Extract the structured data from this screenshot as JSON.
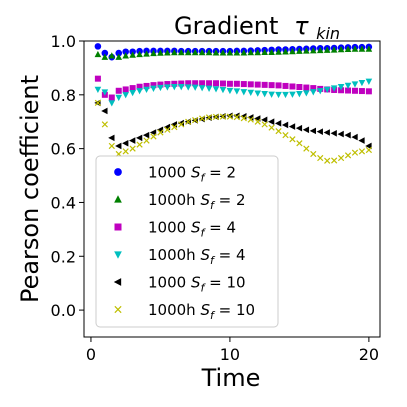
{
  "chart_data": {
    "type": "scatter",
    "title": "Gradient",
    "title_symbol": "τ",
    "title_subscript": "kin",
    "xlabel": "Time",
    "ylabel": "Pearson coefficient",
    "xlim": [
      -0.5,
      20.8
    ],
    "ylim": [
      -0.1,
      1.0
    ],
    "xticks": [
      0,
      10,
      20
    ],
    "yticks": [
      0.0,
      0.2,
      0.4,
      0.6,
      0.8,
      1.0
    ],
    "xtick_labels": [
      "0",
      "10",
      "20"
    ],
    "ytick_labels": [
      "0.0",
      "0.2",
      "0.4",
      "0.6",
      "0.8",
      "1.0"
    ],
    "legend_position": "lower-left",
    "series": [
      {
        "name": "1000",
        "sf": "2",
        "marker": "circle",
        "color": "#0000ff",
        "x": [
          0.5,
          1.0,
          1.5,
          2.0,
          2.5,
          3.0,
          3.5,
          4.0,
          4.5,
          5.0,
          5.5,
          6.0,
          6.5,
          7.0,
          7.5,
          8.0,
          8.5,
          9.0,
          9.5,
          10.0,
          10.5,
          11.0,
          11.5,
          12.0,
          12.5,
          13.0,
          13.5,
          14.0,
          14.5,
          15.0,
          15.5,
          16.0,
          16.5,
          17.0,
          17.5,
          18.0,
          18.5,
          19.0,
          19.5,
          20.0
        ],
        "y": [
          0.98,
          0.955,
          0.94,
          0.955,
          0.96,
          0.96,
          0.962,
          0.963,
          0.963,
          0.963,
          0.963,
          0.963,
          0.962,
          0.962,
          0.962,
          0.962,
          0.962,
          0.962,
          0.962,
          0.962,
          0.963,
          0.963,
          0.964,
          0.965,
          0.966,
          0.967,
          0.968,
          0.968,
          0.969,
          0.97,
          0.971,
          0.972,
          0.973,
          0.973,
          0.974,
          0.975,
          0.976,
          0.977,
          0.977,
          0.978
        ]
      },
      {
        "name": "1000h",
        "sf": "2",
        "marker": "triangle-up",
        "color": "#008000",
        "x": [
          0.5,
          1.0,
          1.5,
          2.0,
          2.5,
          3.0,
          3.5,
          4.0,
          4.5,
          5.0,
          5.5,
          6.0,
          6.5,
          7.0,
          7.5,
          8.0,
          8.5,
          9.0,
          9.5,
          10.0,
          10.5,
          11.0,
          11.5,
          12.0,
          12.5,
          13.0,
          13.5,
          14.0,
          14.5,
          15.0,
          15.5,
          16.0,
          16.5,
          17.0,
          17.5,
          18.0,
          18.5,
          19.0,
          19.5,
          20.0
        ],
        "y": [
          0.95,
          0.94,
          0.945,
          0.94,
          0.945,
          0.948,
          0.95,
          0.952,
          0.954,
          0.955,
          0.956,
          0.957,
          0.957,
          0.957,
          0.957,
          0.957,
          0.957,
          0.956,
          0.956,
          0.956,
          0.956,
          0.956,
          0.957,
          0.957,
          0.958,
          0.958,
          0.959,
          0.96,
          0.961,
          0.962,
          0.963,
          0.964,
          0.965,
          0.966,
          0.967,
          0.968,
          0.969,
          0.97,
          0.97,
          0.97
        ]
      },
      {
        "name": "1000",
        "sf": "4",
        "marker": "square",
        "color": "#bf00bf",
        "x": [
          0.5,
          1.0,
          1.5,
          2.0,
          2.5,
          3.0,
          3.5,
          4.0,
          4.5,
          5.0,
          5.5,
          6.0,
          6.5,
          7.0,
          7.5,
          8.0,
          8.5,
          9.0,
          9.5,
          10.0,
          10.5,
          11.0,
          11.5,
          12.0,
          12.5,
          13.0,
          13.5,
          14.0,
          14.5,
          15.0,
          15.5,
          16.0,
          16.5,
          17.0,
          17.5,
          18.0,
          18.5,
          19.0,
          19.5,
          20.0
        ],
        "y": [
          0.86,
          0.8,
          0.79,
          0.815,
          0.82,
          0.825,
          0.83,
          0.833,
          0.836,
          0.838,
          0.84,
          0.841,
          0.842,
          0.843,
          0.843,
          0.843,
          0.843,
          0.843,
          0.842,
          0.841,
          0.841,
          0.84,
          0.839,
          0.838,
          0.837,
          0.836,
          0.835,
          0.833,
          0.831,
          0.829,
          0.827,
          0.825,
          0.822,
          0.82,
          0.818,
          0.817,
          0.816,
          0.815,
          0.814,
          0.813
        ]
      },
      {
        "name": "1000h",
        "sf": "4",
        "marker": "triangle-down",
        "color": "#00bfbf",
        "x": [
          0.5,
          1.0,
          1.5,
          2.0,
          2.5,
          3.0,
          3.5,
          4.0,
          4.5,
          5.0,
          5.5,
          6.0,
          6.5,
          7.0,
          7.5,
          8.0,
          8.5,
          9.0,
          9.5,
          10.0,
          10.5,
          11.0,
          11.5,
          12.0,
          12.5,
          13.0,
          13.5,
          14.0,
          14.5,
          15.0,
          15.5,
          16.0,
          16.5,
          17.0,
          17.5,
          18.0,
          18.5,
          19.0,
          19.5,
          20.0
        ],
        "y": [
          0.82,
          0.81,
          0.77,
          0.79,
          0.8,
          0.808,
          0.815,
          0.82,
          0.824,
          0.827,
          0.829,
          0.83,
          0.83,
          0.829,
          0.828,
          0.826,
          0.824,
          0.822,
          0.819,
          0.816,
          0.814,
          0.811,
          0.809,
          0.806,
          0.804,
          0.802,
          0.801,
          0.801,
          0.802,
          0.804,
          0.807,
          0.811,
          0.815,
          0.82,
          0.825,
          0.83,
          0.835,
          0.84,
          0.845,
          0.85
        ]
      },
      {
        "name": "1000",
        "sf": "10",
        "marker": "triangle-left",
        "color": "#000000",
        "x": [
          0.5,
          1.0,
          1.5,
          2.0,
          2.5,
          3.0,
          3.5,
          4.0,
          4.5,
          5.0,
          5.5,
          6.0,
          6.5,
          7.0,
          7.5,
          8.0,
          8.5,
          9.0,
          9.5,
          10.0,
          10.5,
          11.0,
          11.5,
          12.0,
          12.5,
          13.0,
          13.5,
          14.0,
          14.5,
          15.0,
          15.5,
          16.0,
          16.5,
          17.0,
          17.5,
          18.0,
          18.5,
          19.0,
          19.5,
          20.0
        ],
        "y": [
          0.77,
          0.74,
          0.64,
          0.61,
          0.62,
          0.63,
          0.64,
          0.65,
          0.66,
          0.67,
          0.68,
          0.69,
          0.695,
          0.7,
          0.705,
          0.71,
          0.715,
          0.718,
          0.72,
          0.722,
          0.722,
          0.72,
          0.716,
          0.712,
          0.707,
          0.7,
          0.694,
          0.688,
          0.682,
          0.676,
          0.67,
          0.666,
          0.663,
          0.66,
          0.657,
          0.654,
          0.65,
          0.643,
          0.63,
          0.61
        ]
      },
      {
        "name": "1000h",
        "sf": "10",
        "marker": "x",
        "color": "#bfbf00",
        "x": [
          0.5,
          1.0,
          1.5,
          2.0,
          2.5,
          3.0,
          3.5,
          4.0,
          4.5,
          5.0,
          5.5,
          6.0,
          6.5,
          7.0,
          7.5,
          8.0,
          8.5,
          9.0,
          9.5,
          10.0,
          10.5,
          11.0,
          11.5,
          12.0,
          12.5,
          13.0,
          13.5,
          14.0,
          14.5,
          15.0,
          15.5,
          16.0,
          16.5,
          17.0,
          17.5,
          18.0,
          18.5,
          19.0,
          19.5,
          20.0
        ],
        "y": [
          0.77,
          0.69,
          0.61,
          0.58,
          0.59,
          0.6,
          0.615,
          0.63,
          0.645,
          0.66,
          0.67,
          0.68,
          0.69,
          0.7,
          0.706,
          0.712,
          0.716,
          0.718,
          0.719,
          0.719,
          0.717,
          0.713,
          0.708,
          0.7,
          0.69,
          0.678,
          0.665,
          0.65,
          0.635,
          0.62,
          0.6,
          0.58,
          0.565,
          0.555,
          0.556,
          0.565,
          0.575,
          0.585,
          0.59,
          0.595
        ]
      }
    ]
  }
}
